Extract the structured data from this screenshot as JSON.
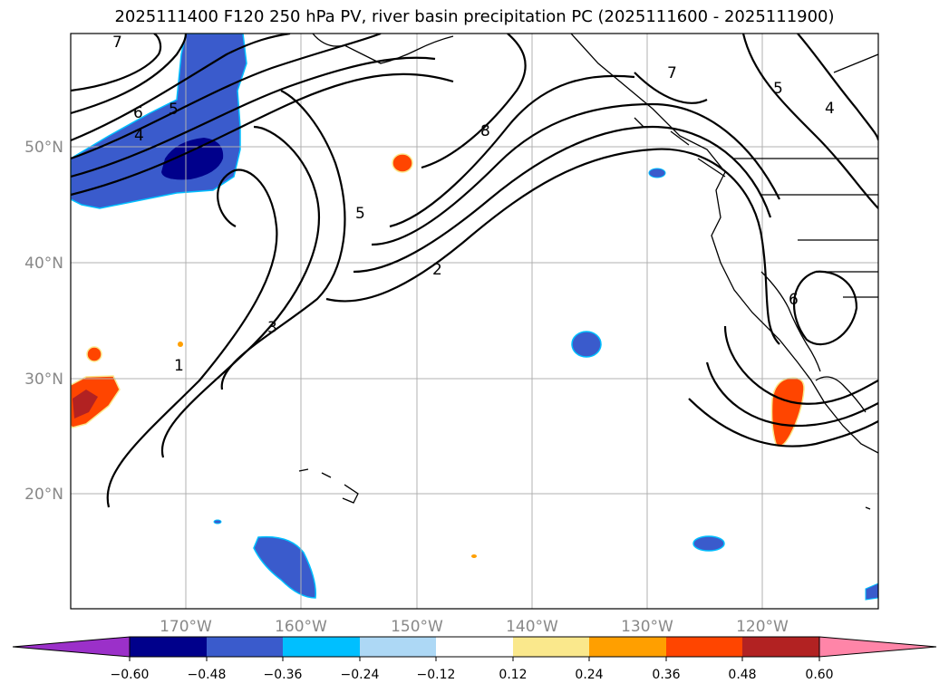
{
  "title": "2025111400 F120 250 hPa PV, river basin precipitation PC (2025111600 - 2025111900)",
  "map": {
    "projection": "lat-lon",
    "lon_labels": [
      "170°W",
      "160°W",
      "150°W",
      "140°W",
      "130°W",
      "120°W"
    ],
    "lat_labels": [
      "50°N",
      "40°N",
      "30°N",
      "20°N"
    ],
    "contour_labels": [
      "7",
      "6",
      "5",
      "4",
      "8",
      "7",
      "5",
      "4",
      "5",
      "2",
      "3",
      "1",
      "6"
    ]
  },
  "colorbar": {
    "extend": "both",
    "colors": [
      "#9b30c9",
      "#00008b",
      "#3a5bcc",
      "#00bfff",
      "#add8f5",
      "#ffffff",
      "#fae88c",
      "#ff9f00",
      "#ff4500",
      "#b22222",
      "#ff85a8"
    ],
    "tick_labels": [
      "−0.60",
      "−0.48",
      "−0.36",
      "−0.24",
      "−0.12",
      "0.12",
      "0.24",
      "0.36",
      "0.48",
      "0.60"
    ]
  },
  "colors": {
    "positive": "#ff4500",
    "positive_strong": "#b22222",
    "negative": "#3a5bcc",
    "negative_strong": "#00008b"
  }
}
